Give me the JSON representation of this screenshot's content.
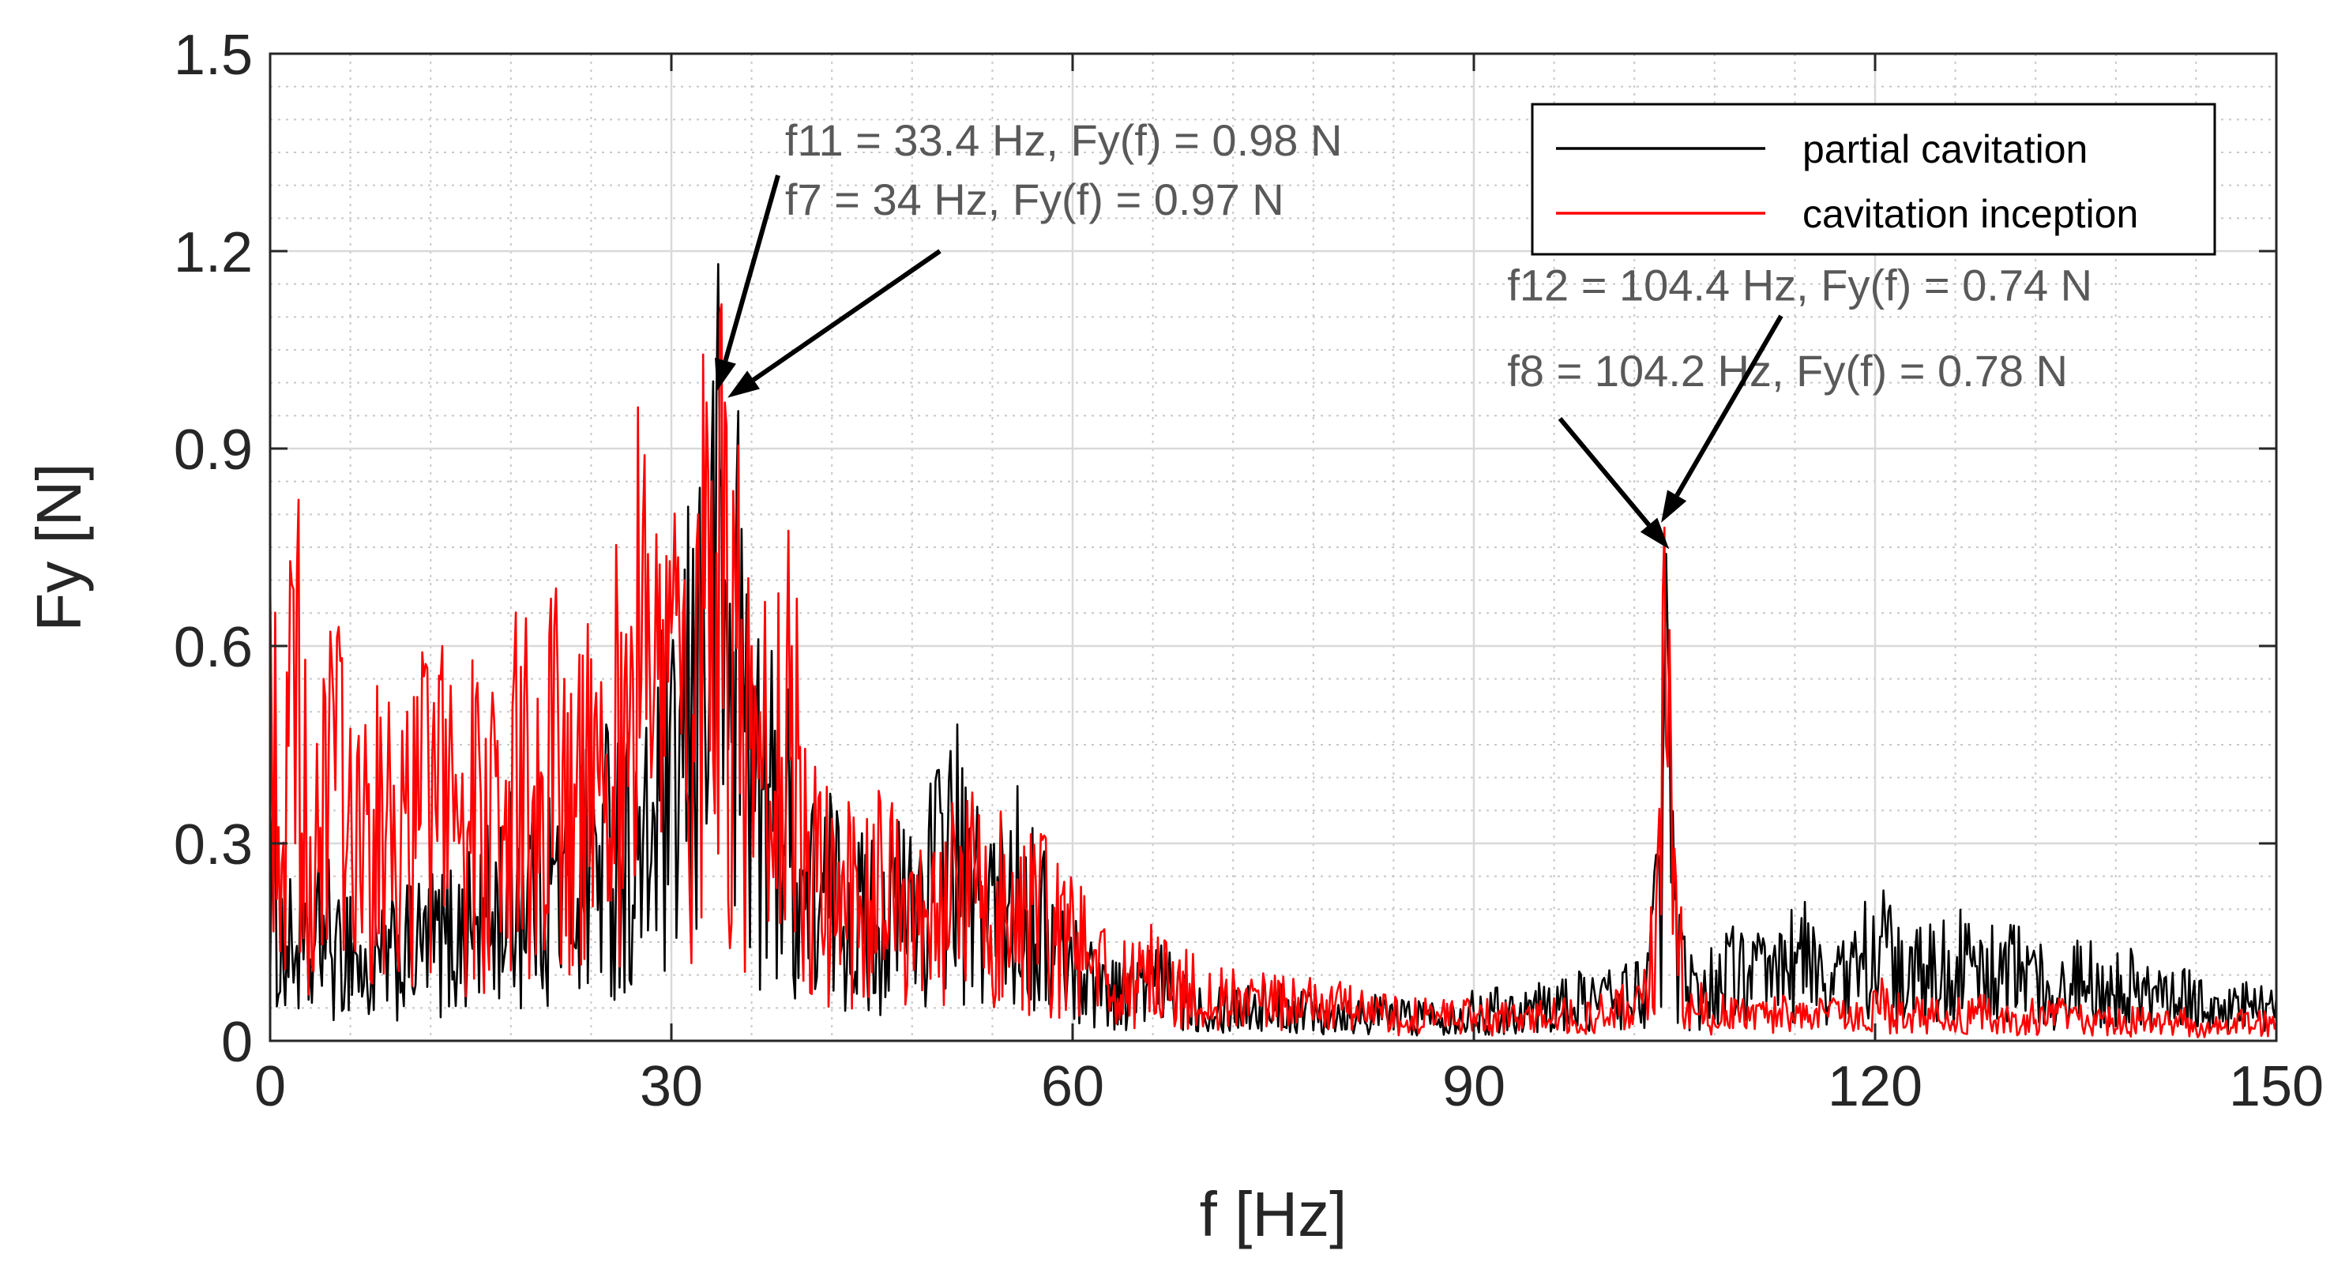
{
  "chart_data": {
    "type": "line",
    "xlabel": "f [Hz]",
    "ylabel": "Fy [N]",
    "xlim": [
      0,
      150
    ],
    "ylim": [
      0,
      1.5
    ],
    "xticks": [
      0,
      30,
      60,
      90,
      120,
      150
    ],
    "xtick_labels": [
      "0",
      "30",
      "60",
      "90",
      "120",
      "150"
    ],
    "yticks": [
      0,
      0.3,
      0.6,
      0.9,
      1.2,
      1.5
    ],
    "ytick_labels": [
      "0",
      "0.3",
      "0.6",
      "0.9",
      "1.2",
      "1.5"
    ],
    "grid": true,
    "minor_grid": true,
    "legend_position": "top-right",
    "series": [
      {
        "name": "partial cavitation",
        "color": "#000000",
        "x": [
          0,
          1,
          2,
          3,
          4,
          5,
          6,
          7,
          8,
          10,
          12,
          14,
          16,
          18,
          20,
          22,
          24,
          26,
          28,
          29,
          30,
          31,
          32,
          33,
          33.4,
          34,
          35,
          36,
          37,
          38,
          40,
          42,
          44,
          46,
          48,
          50,
          51,
          52,
          54,
          56,
          58,
          60,
          62,
          64,
          66,
          68,
          70,
          75,
          80,
          85,
          90,
          95,
          100,
          102,
          103,
          104,
          104.4,
          105,
          106,
          108,
          110,
          112,
          114,
          116,
          118,
          120,
          122,
          124,
          126,
          128,
          130,
          132,
          134,
          136,
          138,
          140,
          142,
          144,
          146,
          148,
          150
        ],
        "y": [
          0.35,
          0.18,
          0.2,
          0.14,
          0.25,
          0.16,
          0.22,
          0.12,
          0.15,
          0.18,
          0.2,
          0.22,
          0.25,
          0.3,
          0.35,
          0.3,
          0.38,
          0.4,
          0.35,
          0.5,
          0.45,
          0.6,
          0.75,
          0.8,
          0.98,
          0.7,
          0.85,
          0.55,
          0.45,
          0.5,
          0.3,
          0.3,
          0.25,
          0.25,
          0.28,
          0.35,
          0.42,
          0.3,
          0.28,
          0.3,
          0.22,
          0.15,
          0.12,
          0.1,
          0.12,
          0.1,
          0.08,
          0.07,
          0.06,
          0.05,
          0.06,
          0.07,
          0.09,
          0.1,
          0.12,
          0.3,
          0.74,
          0.2,
          0.1,
          0.12,
          0.15,
          0.12,
          0.18,
          0.14,
          0.12,
          0.22,
          0.12,
          0.14,
          0.16,
          0.13,
          0.15,
          0.12,
          0.1,
          0.14,
          0.12,
          0.1,
          0.08,
          0.09,
          0.06,
          0.07,
          0.06
        ]
      },
      {
        "name": "cavitation inception",
        "color": "#ff0000",
        "x": [
          0,
          1,
          2,
          3,
          4,
          5,
          6,
          7,
          8,
          10,
          12,
          14,
          16,
          18,
          20,
          22,
          24,
          26,
          28,
          29,
          30,
          31,
          32,
          33,
          34,
          35,
          36,
          37,
          38,
          39,
          40,
          42,
          44,
          46,
          48,
          50,
          52,
          54,
          56,
          58,
          60,
          62,
          64,
          66,
          68,
          70,
          75,
          80,
          85,
          90,
          95,
          100,
          102,
          103,
          104,
          104.2,
          105,
          106,
          108,
          110,
          112,
          114,
          116,
          118,
          120,
          122,
          124,
          126,
          128,
          130,
          132,
          134,
          136,
          138,
          140,
          142,
          144,
          146,
          148,
          150
        ],
        "y": [
          0.7,
          0.45,
          0.71,
          0.3,
          0.55,
          0.5,
          0.38,
          0.45,
          0.42,
          0.45,
          0.5,
          0.45,
          0.45,
          0.5,
          0.52,
          0.55,
          0.58,
          0.6,
          0.89,
          0.55,
          0.62,
          0.7,
          0.8,
          0.85,
          0.97,
          0.75,
          0.6,
          0.55,
          0.68,
          0.6,
          0.4,
          0.3,
          0.28,
          0.3,
          0.25,
          0.26,
          0.3,
          0.28,
          0.26,
          0.24,
          0.2,
          0.14,
          0.12,
          0.14,
          0.12,
          0.09,
          0.08,
          0.07,
          0.05,
          0.05,
          0.05,
          0.06,
          0.07,
          0.1,
          0.35,
          0.78,
          0.25,
          0.08,
          0.06,
          0.05,
          0.05,
          0.06,
          0.05,
          0.05,
          0.08,
          0.06,
          0.05,
          0.05,
          0.06,
          0.05,
          0.05,
          0.05,
          0.04,
          0.04,
          0.04,
          0.05,
          0.03,
          0.03,
          0.04,
          0.03
        ]
      }
    ],
    "annotations": [
      {
        "text": "f11 = 33.4 Hz, Fy(f) =    0.98 N",
        "target": [
          33.4,
          0.98
        ],
        "label_pos": [
          38.5,
          1.345
        ]
      },
      {
        "text": "f7 = 34 Hz, Fy(f) = 0.97 N",
        "target": [
          34.2,
          0.97
        ],
        "label_pos": [
          38.5,
          1.255
        ]
      },
      {
        "text": "f12 = 104.4 Hz, Fy(f) = 0.74 N",
        "target": [
          104.6,
          0.74
        ],
        "label_pos": [
          92.5,
          1.125
        ]
      },
      {
        "text": "f8 = 104.2 Hz, Fy(f) = 0.78 N",
        "target": [
          104.0,
          0.78
        ],
        "label_pos": [
          92.5,
          0.995
        ]
      }
    ]
  }
}
